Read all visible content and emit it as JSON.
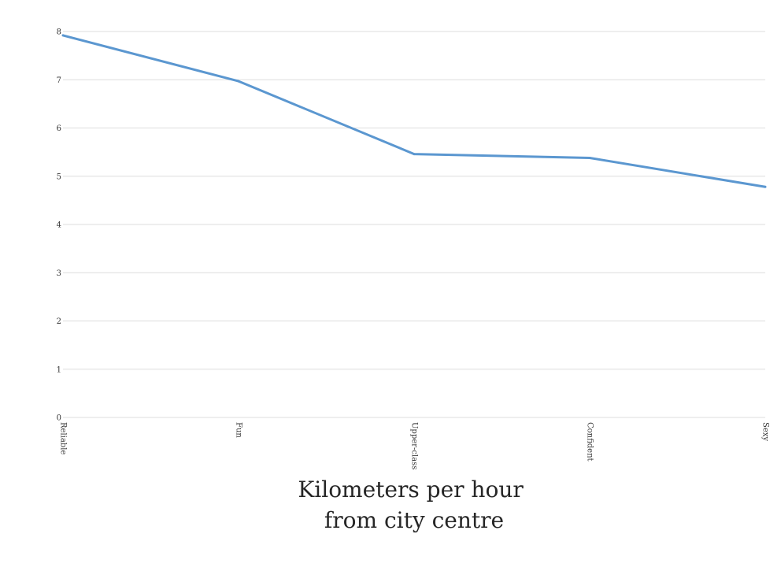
{
  "chart_data": {
    "type": "line",
    "categories": [
      "Reliable",
      "Fun",
      "Upper-class",
      "Confident",
      "Sexy"
    ],
    "series": [
      {
        "values": [
          7.92,
          6.97,
          5.46,
          5.38,
          4.78
        ],
        "color": "#5b97d0"
      }
    ],
    "xlabel": [
      "Kilometers per hour",
      "from city centre"
    ],
    "ylabel": "",
    "ylim": [
      0,
      8
    ],
    "yticks": [
      "0",
      "1",
      "2",
      "3",
      "4",
      "5",
      "6",
      "7",
      "8"
    ],
    "grid": true,
    "gridline_color": "#dddddd"
  }
}
